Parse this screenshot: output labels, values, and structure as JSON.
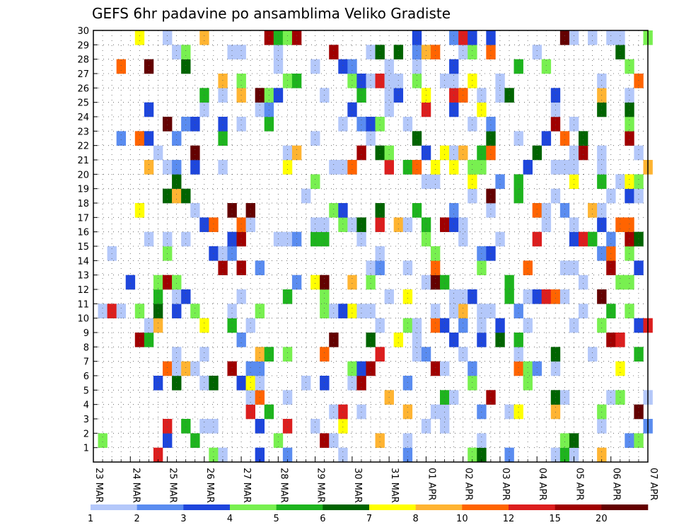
{
  "chart_data": {
    "type": "heatmap",
    "title": "GEFS 6hr padavine po ansamblima Veliko Gradiste",
    "xlabel": "",
    "ylabel": "",
    "x_tick_labels": [
      "23 MAR",
      "24 MAR",
      "25 MAR",
      "26 MAR",
      "27 MAR",
      "28 MAR",
      "29 MAR",
      "30 MAR",
      "31 MAR",
      "01 APR",
      "02 APR",
      "03 APR",
      "04 APR",
      "05 APR",
      "06 APR",
      "07 APR"
    ],
    "y_tick_labels": [
      "1",
      "2",
      "3",
      "4",
      "5",
      "6",
      "7",
      "8",
      "9",
      "10",
      "11",
      "12",
      "13",
      "14",
      "15",
      "16",
      "17",
      "18",
      "19",
      "20",
      "21",
      "22",
      "23",
      "24",
      "25",
      "26",
      "27",
      "28",
      "29",
      "30"
    ],
    "n_time_steps": 61,
    "steps_per_day": 4,
    "n_members": 30,
    "colorbar": {
      "labels": [
        "1",
        "2",
        "3",
        "4",
        "5",
        "6",
        "7",
        "8",
        "10",
        "12",
        "15",
        "20"
      ],
      "colors": [
        "#b4c8fa",
        "#5a8cf0",
        "#1e46dc",
        "#78f050",
        "#1eb41e",
        "#006400",
        "#ffff00",
        "#ffb432",
        "#ff6400",
        "#dc1e1e",
        "#a00000",
        "#640000"
      ]
    },
    "grid": true,
    "values_rle": [
      "11-1 27-2 29-3 31-1 33-1 35-1 36-2 41-3 42-4 43-5 44-1",
      "35-2 40-5 41-7 42-7 43-7 44-1 45-1 46-1 47-6 49-1 50-1 51-1 52-2 53-1 54-1 56-1 57-2 58-1 59-1 60-2 61-1 62-4 63-8 64-7 65-7 66-1 68-9 70-9 71-9 72-9 74-9 75-10 76-11 77-11 78-10 79-8 80-1 81-1 82-2",
      "100-1 121-1 123-1 125-1 127-1 129-1 131-1 133-1 135-1 137-1",
      "180-2",
      "240-4 301-1",
      "361-1 363-3 364-1 366-1 368-1 370-1 372-1 374-1 376-1 378-1",
      "420-1 422-1 423-2 424-3 425-3 426-2 427-1 428-1 429-1 430-1",
      "440-2 442-1 444-1 446-1 448-1 450-1",
      "499-2 500-3 501-3 502-1 503-2 504-1 505-1",
      "538-1 540-1 541-2 542-4 543-1 544-1 545-1 546-1",
      "560-2 562-1"
    ]
  }
}
